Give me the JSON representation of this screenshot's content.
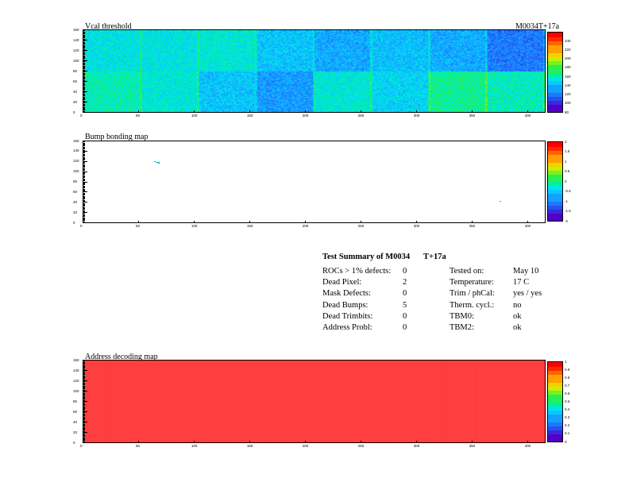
{
  "module_label": "M0034T+17a",
  "chart_data": [
    {
      "type": "heatmap",
      "title": "Vcal threshold",
      "xlim": [
        0,
        416
      ],
      "ylim": [
        0,
        160
      ],
      "xticks": [
        "0",
        "50",
        "100",
        "150",
        "200",
        "250",
        "300",
        "350",
        "400"
      ],
      "yticks": [
        "0",
        "20",
        "40",
        "60",
        "80",
        "100",
        "120",
        "140",
        "160"
      ],
      "zlim": [
        80,
        260
      ],
      "zticks": [
        "80",
        "100",
        "120",
        "140",
        "160",
        "180",
        "200",
        "220",
        "240"
      ],
      "roc_layout": {
        "columns": 8,
        "rows": 2,
        "cols_per_roc": 52,
        "rows_per_roc": 80
      },
      "roc_mean_levels": {
        "top": [
          0.4,
          0.4,
          0.42,
          0.34,
          0.3,
          0.33,
          0.3,
          0.22
        ],
        "bottom": [
          0.45,
          0.42,
          0.34,
          0.27,
          0.42,
          0.37,
          0.48,
          0.44
        ]
      },
      "grid": false
    },
    {
      "type": "heatmap",
      "title": "Bump bonding map",
      "xlim": [
        0,
        416
      ],
      "ylim": [
        0,
        160
      ],
      "xticks": [
        "0",
        "50",
        "100",
        "150",
        "200",
        "250",
        "300",
        "350",
        "400"
      ],
      "yticks": [
        "0",
        "20",
        "40",
        "60",
        "80",
        "100",
        "120",
        "140",
        "160"
      ],
      "zlim": [
        -2,
        2
      ],
      "zticks": [
        "-2",
        "-1.5",
        "-1",
        "-0.5",
        "0",
        "0.5",
        "1",
        "1.5",
        "2"
      ],
      "marked_pixels": [
        {
          "x": 64,
          "y": 121
        },
        {
          "x": 65,
          "y": 120
        },
        {
          "x": 66,
          "y": 120
        },
        {
          "x": 67,
          "y": 119
        },
        {
          "x": 375,
          "y": 43
        }
      ],
      "grid": false
    },
    {
      "type": "heatmap",
      "title": "Address decoding map",
      "xlim": [
        0,
        416
      ],
      "ylim": [
        0,
        160
      ],
      "xticks": [
        "0",
        "50",
        "100",
        "150",
        "200",
        "250",
        "300",
        "350",
        "400"
      ],
      "yticks": [
        "0",
        "20",
        "40",
        "60",
        "80",
        "100",
        "120",
        "140",
        "160"
      ],
      "zlim": [
        0,
        1
      ],
      "zticks": [
        "0",
        "0.1",
        "0.2",
        "0.3",
        "0.4",
        "0.5",
        "0.6",
        "0.7",
        "0.8",
        "0.9",
        "1"
      ],
      "uniform_value": 1,
      "grid": false
    }
  ],
  "summary": {
    "title": "Test Summary of M0034",
    "title_suffix": "T+17a",
    "left": [
      {
        "label": "ROCs > 1% defects:",
        "value": "0"
      },
      {
        "label": "Dead Pixel:",
        "value": "2"
      },
      {
        "label": "Mask Defects:",
        "value": "0"
      },
      {
        "label": "Dead Bumps:",
        "value": "5"
      },
      {
        "label": "Dead Trimbits:",
        "value": "0"
      },
      {
        "label": "Address Probl:",
        "value": "0"
      }
    ],
    "right": [
      {
        "label": "Tested on:",
        "value": "May 10"
      },
      {
        "label": "Temperature:",
        "value": "17 C"
      },
      {
        "label": "Trim / phCal:",
        "value": "yes / yes"
      },
      {
        "label": "Therm. cycl.:",
        "value": "no"
      },
      {
        "label": "TBM0:",
        "value": "ok"
      },
      {
        "label": "TBM2:",
        "value": "ok"
      }
    ]
  },
  "palette": [
    "#5000c8",
    "#3c28dc",
    "#2850f0",
    "#1e78ff",
    "#14a0ff",
    "#0ac8ff",
    "#00e6e6",
    "#00f0a0",
    "#28f050",
    "#78f028",
    "#c8f000",
    "#f0d200",
    "#ffa000",
    "#ff6400",
    "#ff2800",
    "#ff0000"
  ]
}
